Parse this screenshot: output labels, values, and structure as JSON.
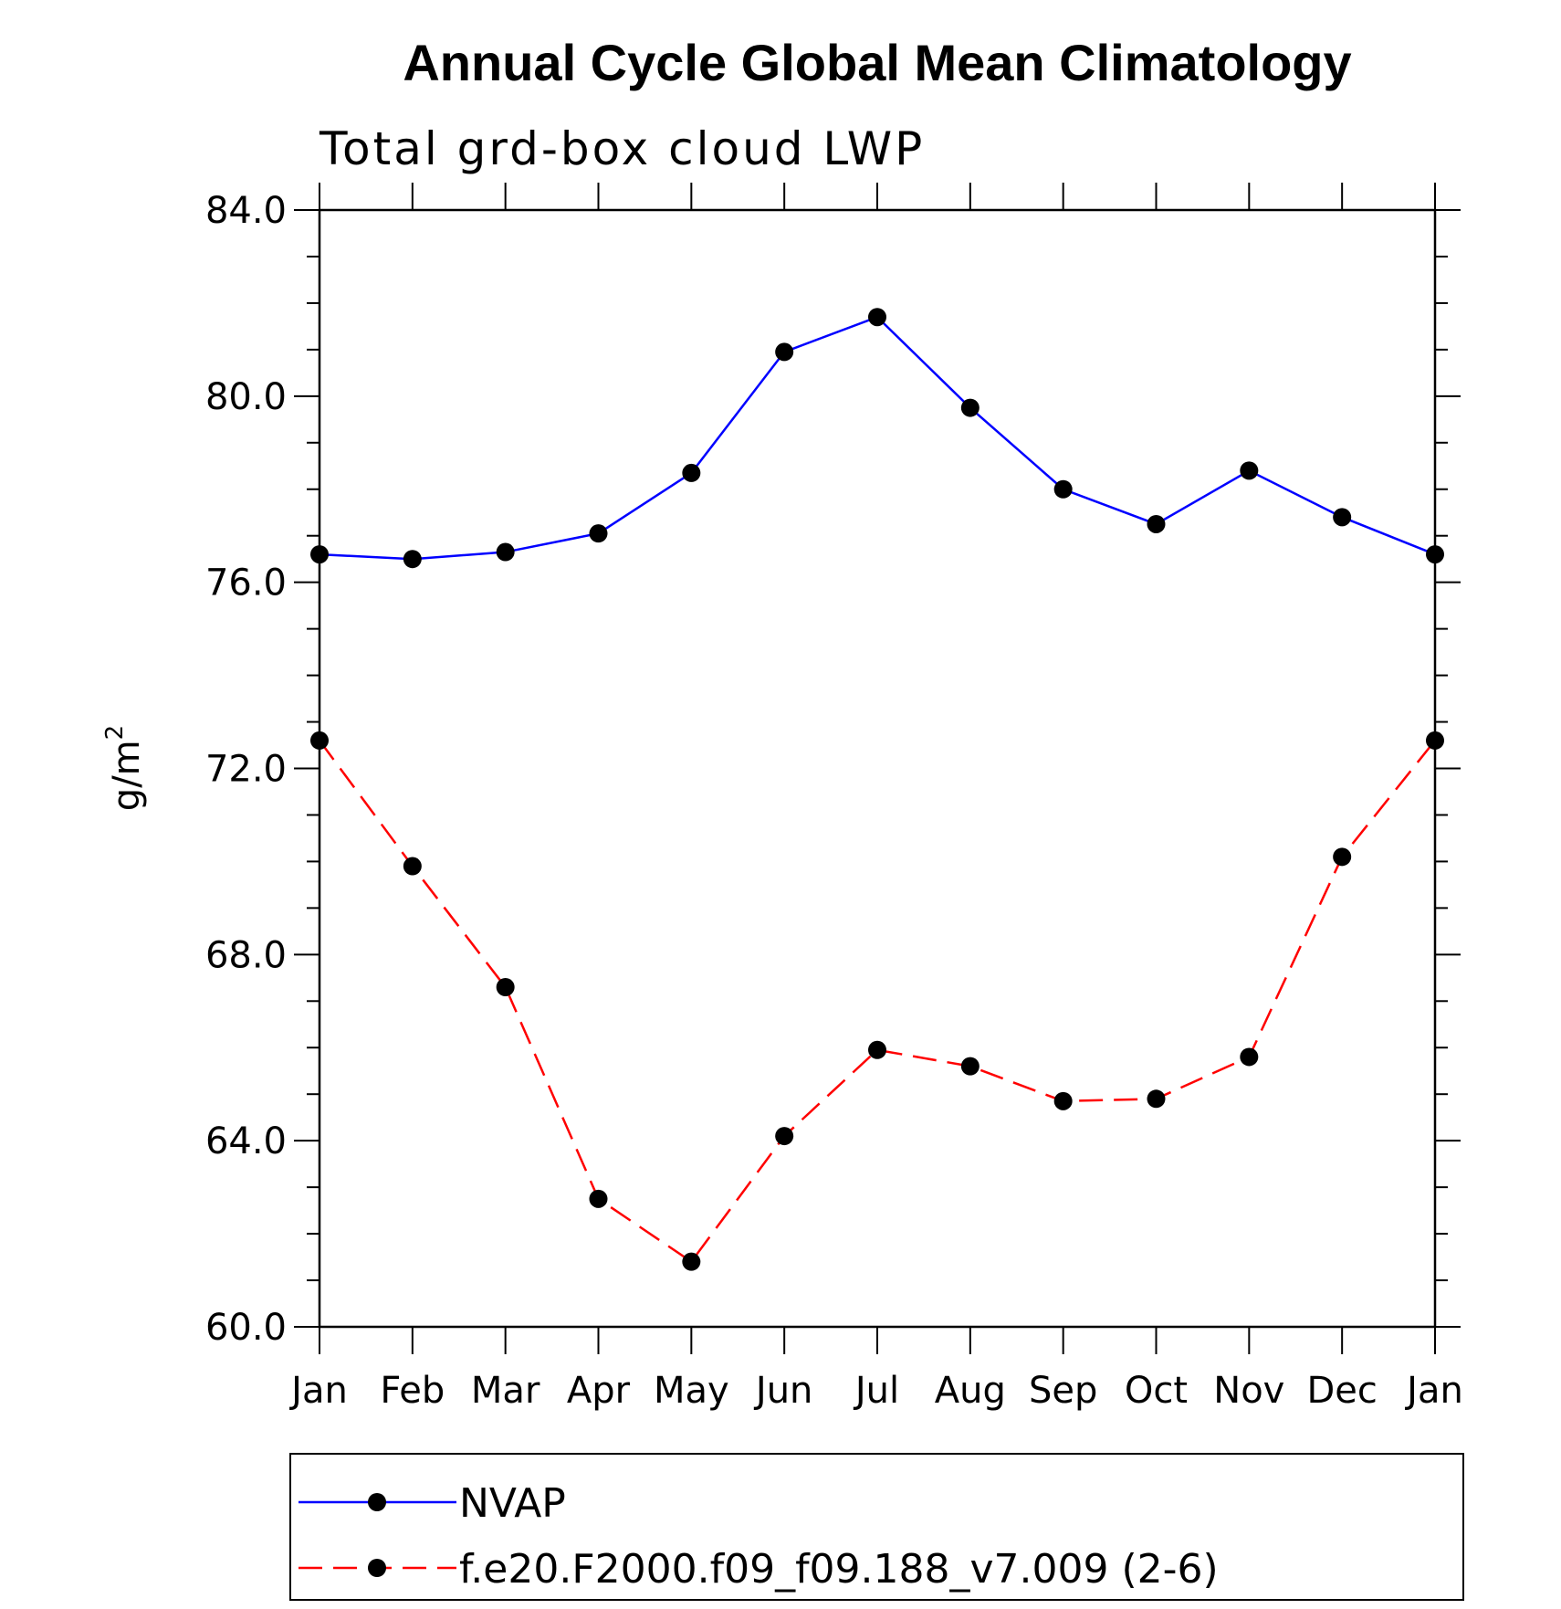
{
  "chart_data": {
    "type": "line",
    "title": "Annual Cycle Global Mean Climatology",
    "subtitle": "Total grd-box cloud LWP",
    "ylabel": "g/m",
    "ylabel_superscript": "2",
    "categories": [
      "Jan",
      "Feb",
      "Mar",
      "Apr",
      "May",
      "Jun",
      "Jul",
      "Aug",
      "Sep",
      "Oct",
      "Nov",
      "Dec",
      "Jan"
    ],
    "ylim": [
      60,
      84
    ],
    "yticks": [
      "60.0",
      "64.0",
      "68.0",
      "72.0",
      "76.0",
      "80.0",
      "84.0"
    ],
    "series": [
      {
        "name": "NVAP",
        "color": "#0000ff",
        "dash": "solid",
        "values": [
          76.6,
          76.5,
          76.65,
          77.05,
          78.35,
          80.95,
          81.7,
          79.75,
          78.0,
          77.25,
          78.4,
          77.4,
          76.6
        ]
      },
      {
        "name": "f.e20.F2000.f09_f09.188_v7.009 (2-6)",
        "color": "#ff0000",
        "dash": "dashed",
        "values": [
          72.6,
          69.9,
          67.3,
          62.75,
          61.4,
          64.1,
          65.95,
          65.6,
          64.85,
          64.9,
          65.8,
          70.1,
          72.6
        ]
      }
    ],
    "legend_position": "bottom",
    "grid": false
  }
}
